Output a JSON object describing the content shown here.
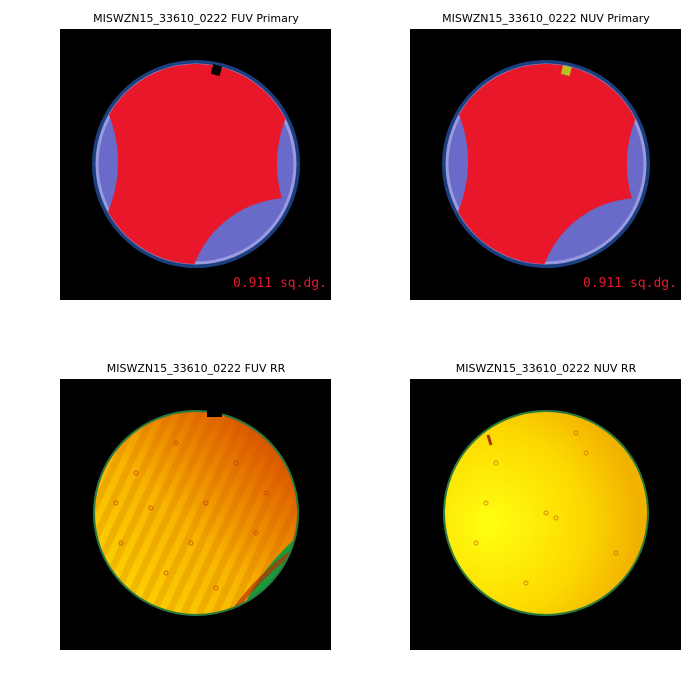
{
  "panels": [
    {
      "title": "MISWZN15_33610_0222 FUV Primary",
      "annotation": "0.911 sq.dg."
    },
    {
      "title": "MISWZN15_33610_0222 NUV Primary",
      "annotation": "0.911 sq.dg."
    },
    {
      "title": "MISWZN15_33610_0222 FUV RR"
    },
    {
      "title": "MISWZN15_33610_0222 NUV RR"
    }
  ]
}
